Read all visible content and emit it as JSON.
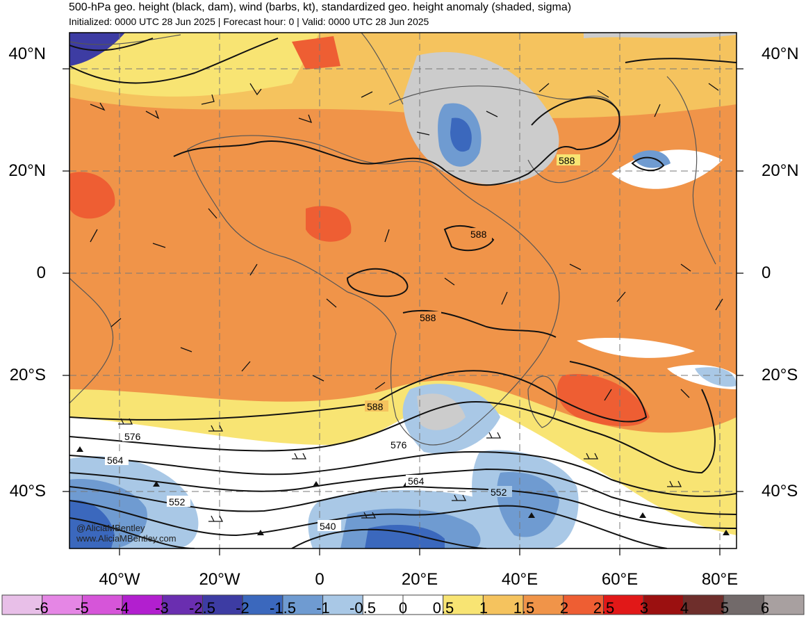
{
  "header": {
    "title": "500-hPa geo. height (black, dam), wind (barbs, kt), standardized geo. height anomaly (shaded, sigma)",
    "subtitle": "Initialized: 0000 UTC 28 Jun 2025 | Forecast hour: 0 | Valid: 0000 UTC 28 Jun 2025"
  },
  "map": {
    "lat_labels": [
      "40°N",
      "20°N",
      "0",
      "20°S",
      "40°S"
    ],
    "lon_labels": [
      "40°W",
      "20°W",
      "0",
      "20°E",
      "40°E",
      "60°E",
      "80°E"
    ],
    "contour_labels": [
      "588",
      "588",
      "588",
      "588",
      "576",
      "576",
      "564",
      "564",
      "552",
      "552",
      "540"
    ],
    "credit_handle": "@AliciaMBentley",
    "credit_url": "www.AliciaMBentley.com"
  },
  "colorbar": {
    "labels": [
      "-6",
      "-5",
      "-4",
      "-3",
      "-2.5",
      "-2",
      "-1.5",
      "-1",
      "-0.5",
      "0",
      "0.5",
      "1",
      "1.5",
      "2",
      "2.5",
      "3",
      "4",
      "5",
      "6"
    ],
    "colors": [
      "#e8bfe8",
      "#e586e5",
      "#d655d9",
      "#b21fcf",
      "#6a2eb0",
      "#3d3ca3",
      "#3b68bd",
      "#6f9bd1",
      "#a9c8e6",
      "#ffffff",
      "#ffffff",
      "#f8e473",
      "#f5c35e",
      "#f09449",
      "#ee5e33",
      "#e11818",
      "#9b1010",
      "#6e2e2b",
      "#726a6a",
      "#a8a0a0"
    ]
  }
}
